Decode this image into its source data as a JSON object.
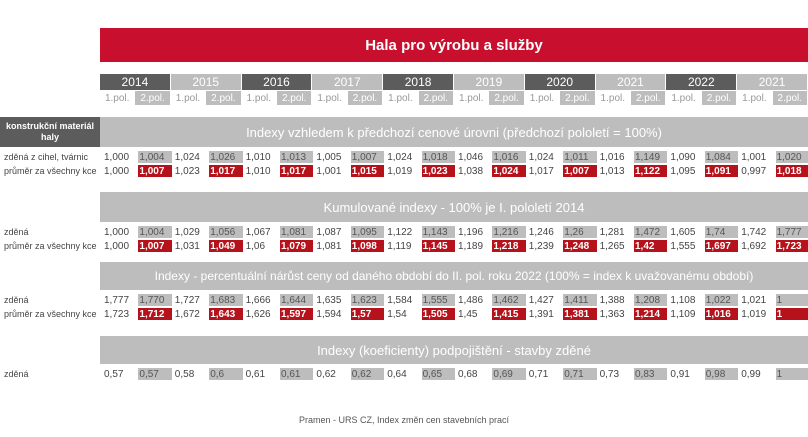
{
  "title": "Hala pro výrobu a služby",
  "years": [
    "2014",
    "2015",
    "2016",
    "2017",
    "2018",
    "2019",
    "2020",
    "2021",
    "2022",
    "2021"
  ],
  "halves": [
    "1.pol.",
    "2.pol."
  ],
  "material_label": "konstrukční materiál haly",
  "source": "Pramen - URS CZ, Index změn cen stavebních prací",
  "sections": [
    {
      "title": "Indexy vzhledem k předchozí cenové úrovni (předchozí pololetí = 100%)",
      "rows": [
        {
          "label": "zděná z cihel, tvárnic",
          "values": [
            "1,000",
            "1,004",
            "1,024",
            "1,026",
            "1,010",
            "1,013",
            "1,005",
            "1,007",
            "1,024",
            "1,018",
            "1,046",
            "1,016",
            "1,024",
            "1,011",
            "1,016",
            "1,149",
            "1,090",
            "1,084",
            "1,001",
            "1,020"
          ],
          "style": "grey"
        },
        {
          "label": "průměr za všechny kce",
          "values": [
            "1,000",
            "1,007",
            "1,023",
            "1,017",
            "1,010",
            "1,017",
            "1,001",
            "1,015",
            "1,019",
            "1,023",
            "1,038",
            "1,024",
            "1,017",
            "1,007",
            "1,013",
            "1,122",
            "1,095",
            "1,091",
            "0,997",
            "1,018"
          ],
          "style": "red"
        }
      ]
    },
    {
      "title": "Kumulované indexy - 100% je I. pololetí 2014",
      "rows": [
        {
          "label": "zděná",
          "values": [
            "1,000",
            "1,004",
            "1,029",
            "1,056",
            "1,067",
            "1,081",
            "1,087",
            "1,095",
            "1,122",
            "1,143",
            "1,196",
            "1,216",
            "1,246",
            "1,26",
            "1,281",
            "1,472",
            "1,605",
            "1,74",
            "1,742",
            "1,777"
          ],
          "style": "grey"
        },
        {
          "label": "průměr za všechny kce",
          "values": [
            "1,000",
            "1,007",
            "1,031",
            "1,049",
            "1,06",
            "1,079",
            "1,081",
            "1,098",
            "1,119",
            "1,145",
            "1,189",
            "1,218",
            "1,239",
            "1,248",
            "1,265",
            "1,42",
            "1,555",
            "1,697",
            "1,692",
            "1,723"
          ],
          "style": "red"
        }
      ]
    },
    {
      "title": "Indexy - percentuální nárůst ceny od daného období do II. pol. roku 2022 (100% = index k uvažovanému období)",
      "rows": [
        {
          "label": "zděná",
          "values": [
            "1,777",
            "1,770",
            "1,727",
            "1,683",
            "1,666",
            "1,644",
            "1,635",
            "1,623",
            "1,584",
            "1,555",
            "1,486",
            "1,462",
            "1,427",
            "1,411",
            "1,388",
            "1,208",
            "1,108",
            "1,022",
            "1,021",
            "1"
          ],
          "style": "grey"
        },
        {
          "label": "průměr za všechny kce",
          "values": [
            "1,723",
            "1,712",
            "1,672",
            "1,643",
            "1,626",
            "1,597",
            "1,594",
            "1,57",
            "1,54",
            "1,505",
            "1,45",
            "1,415",
            "1,391",
            "1,381",
            "1,363",
            "1,214",
            "1,109",
            "1,016",
            "1,019",
            "1"
          ],
          "style": "red"
        }
      ]
    },
    {
      "title": "Indexy (koeficienty) podpojištění - stavby zděné",
      "rows": [
        {
          "label": "zděná",
          "values": [
            "0,57",
            "0,57",
            "0,58",
            "0,6",
            "0,61",
            "0,61",
            "0,62",
            "0,62",
            "0,64",
            "0,65",
            "0,68",
            "0,69",
            "0,71",
            "0,71",
            "0,73",
            "0,83",
            "0,91",
            "0,98",
            "0,99",
            "1"
          ],
          "style": "grey"
        }
      ]
    }
  ]
}
